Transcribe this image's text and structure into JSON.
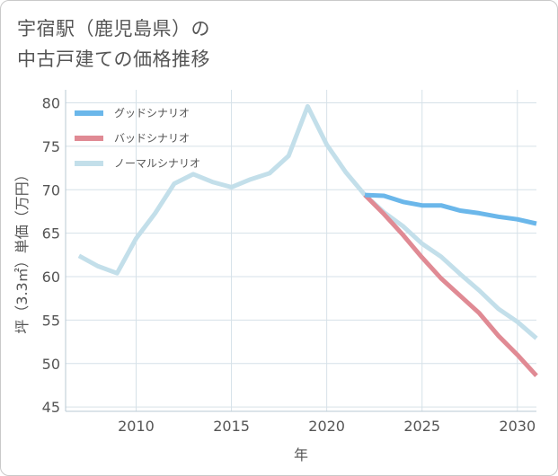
{
  "title_lines": [
    "宇宿駅（鹿児島県）の",
    "中古戸建ての価格推移"
  ],
  "chart_data": {
    "type": "line",
    "xlabel": "年",
    "ylabel": "坪（3.3㎡）単価（万円）",
    "xlim": [
      2006.3,
      2031
    ],
    "ylim": [
      44.5,
      81.5
    ],
    "x_ticks": [
      2010,
      2015,
      2020,
      2025,
      2030
    ],
    "x_tick_labels": [
      "2010",
      "2015",
      "2020",
      "2025",
      "2030"
    ],
    "y_ticks": [
      45,
      50,
      55,
      60,
      65,
      70,
      75,
      80
    ],
    "y_tick_labels": [
      "45",
      "50",
      "55",
      "60",
      "65",
      "70",
      "75",
      "80"
    ],
    "grid": true,
    "legend_position": "top-left",
    "series": [
      {
        "name": "グッドシナリオ",
        "color": "#6bb7ea",
        "x": [
          2022,
          2023,
          2024,
          2025,
          2026,
          2027,
          2028,
          2029,
          2030,
          2031
        ],
        "y": [
          69.4,
          69.3,
          68.6,
          68.2,
          68.2,
          67.6,
          67.3,
          66.9,
          66.6,
          66.1
        ]
      },
      {
        "name": "バッドシナリオ",
        "color": "#e08a94",
        "x": [
          2022,
          2023,
          2024,
          2025,
          2026,
          2027,
          2028,
          2029,
          2030,
          2031
        ],
        "y": [
          69.4,
          67.2,
          64.8,
          62.2,
          59.8,
          57.8,
          55.8,
          53.2,
          51.0,
          48.6
        ]
      },
      {
        "name": "ノーマルシナリオ",
        "color": "#c3dfea",
        "x": [
          2007,
          2008,
          2009,
          2010,
          2011,
          2012,
          2013,
          2014,
          2015,
          2016,
          2017,
          2018,
          2019,
          2020,
          2021,
          2022,
          2023,
          2024,
          2025,
          2026,
          2027,
          2028,
          2029,
          2030,
          2031
        ],
        "y": [
          62.4,
          61.2,
          60.4,
          64.4,
          67.3,
          70.7,
          71.8,
          70.9,
          70.3,
          71.2,
          71.9,
          73.9,
          79.6,
          75.2,
          72.0,
          69.4,
          67.4,
          65.8,
          63.8,
          62.3,
          60.3,
          58.4,
          56.3,
          54.8,
          52.9
        ]
      }
    ]
  }
}
